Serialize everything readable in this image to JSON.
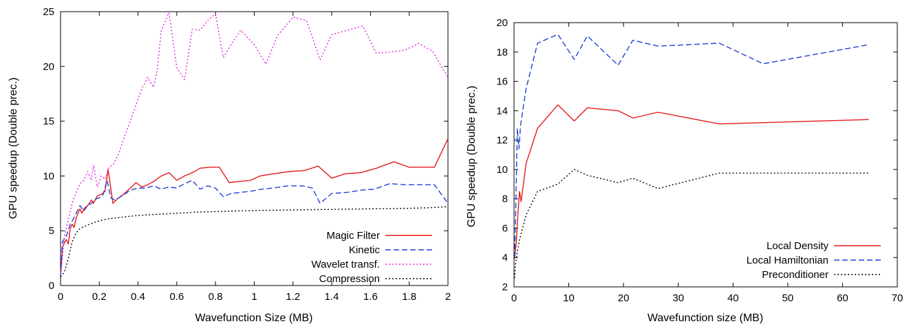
{
  "chart_data": [
    {
      "type": "line",
      "title": "",
      "xlabel": "Wavefunction Size (MB)",
      "ylabel": "GPU speedup (Double prec.)",
      "xlim": [
        0,
        2
      ],
      "ylim": [
        0,
        25
      ],
      "xticks": [
        0,
        0.2,
        0.4,
        0.6,
        0.8,
        1,
        1.2,
        1.4,
        1.6,
        1.8,
        2
      ],
      "xtick_labels": [
        "0",
        "0.2",
        "0.4",
        "0.6",
        "0.8",
        "1",
        "1.2",
        "1.4",
        "1.6",
        "1.8",
        "2"
      ],
      "yticks": [
        0,
        5,
        10,
        15,
        20,
        25
      ],
      "ytick_labels": [
        "0",
        "5",
        "10",
        "15",
        "20",
        "25"
      ],
      "grid": false,
      "legend_position": "bottom-right",
      "series": [
        {
          "name": "Magic Filter",
          "color": "#e41a1c",
          "dash": "solid",
          "points": [
            [
              0,
              0.8
            ],
            [
              0.01,
              3.5
            ],
            [
              0.02,
              3.9
            ],
            [
              0.03,
              4.2
            ],
            [
              0.04,
              3.8
            ],
            [
              0.05,
              5.2
            ],
            [
              0.06,
              5.6
            ],
            [
              0.07,
              5.3
            ],
            [
              0.08,
              6.1
            ],
            [
              0.09,
              6.6
            ],
            [
              0.1,
              7.0
            ],
            [
              0.11,
              6.6
            ],
            [
              0.12,
              7.0
            ],
            [
              0.14,
              7.3
            ],
            [
              0.16,
              7.8
            ],
            [
              0.17,
              7.5
            ],
            [
              0.19,
              8.2
            ],
            [
              0.21,
              8.3
            ],
            [
              0.23,
              8.6
            ],
            [
              0.245,
              10.6
            ],
            [
              0.26,
              8.8
            ],
            [
              0.27,
              7.5
            ],
            [
              0.3,
              8.0
            ],
            [
              0.33,
              8.4
            ],
            [
              0.36,
              8.9
            ],
            [
              0.39,
              9.4
            ],
            [
              0.42,
              9.0
            ],
            [
              0.45,
              9.2
            ],
            [
              0.48,
              9.5
            ],
            [
              0.52,
              10.0
            ],
            [
              0.56,
              10.3
            ],
            [
              0.6,
              9.6
            ],
            [
              0.64,
              10.0
            ],
            [
              0.68,
              10.3
            ],
            [
              0.72,
              10.7
            ],
            [
              0.77,
              10.8
            ],
            [
              0.82,
              10.8
            ],
            [
              0.87,
              9.4
            ],
            [
              0.92,
              9.5
            ],
            [
              0.98,
              9.6
            ],
            [
              1.03,
              10.0
            ],
            [
              1.1,
              10.2
            ],
            [
              1.18,
              10.4
            ],
            [
              1.26,
              10.5
            ],
            [
              1.33,
              10.9
            ],
            [
              1.4,
              9.8
            ],
            [
              1.47,
              10.2
            ],
            [
              1.55,
              10.3
            ],
            [
              1.63,
              10.7
            ],
            [
              1.72,
              11.3
            ],
            [
              1.8,
              10.8
            ],
            [
              1.87,
              10.8
            ],
            [
              1.93,
              10.8
            ],
            [
              2,
              13.4
            ]
          ]
        },
        {
          "name": "Kinetic",
          "color": "#1f3fd6",
          "dash": "dashed",
          "points": [
            [
              0,
              0.8
            ],
            [
              0.01,
              4.0
            ],
            [
              0.03,
              4.5
            ],
            [
              0.05,
              5.6
            ],
            [
              0.07,
              6.2
            ],
            [
              0.1,
              7.3
            ],
            [
              0.12,
              6.8
            ],
            [
              0.14,
              7.3
            ],
            [
              0.16,
              7.5
            ],
            [
              0.18,
              7.9
            ],
            [
              0.2,
              8.0
            ],
            [
              0.22,
              8.3
            ],
            [
              0.24,
              9.6
            ],
            [
              0.26,
              8.0
            ],
            [
              0.28,
              7.8
            ],
            [
              0.32,
              8.2
            ],
            [
              0.36,
              8.7
            ],
            [
              0.4,
              8.9
            ],
            [
              0.44,
              8.9
            ],
            [
              0.48,
              9.1
            ],
            [
              0.52,
              8.8
            ],
            [
              0.56,
              9.0
            ],
            [
              0.6,
              8.9
            ],
            [
              0.64,
              9.3
            ],
            [
              0.68,
              9.6
            ],
            [
              0.72,
              8.8
            ],
            [
              0.76,
              9.1
            ],
            [
              0.8,
              8.9
            ],
            [
              0.84,
              8.1
            ],
            [
              0.88,
              8.4
            ],
            [
              0.93,
              8.5
            ],
            [
              0.98,
              8.6
            ],
            [
              1.04,
              8.8
            ],
            [
              1.1,
              8.9
            ],
            [
              1.17,
              9.1
            ],
            [
              1.25,
              9.1
            ],
            [
              1.3,
              8.9
            ],
            [
              1.34,
              7.5
            ],
            [
              1.4,
              8.4
            ],
            [
              1.48,
              8.5
            ],
            [
              1.55,
              8.7
            ],
            [
              1.62,
              8.8
            ],
            [
              1.7,
              9.3
            ],
            [
              1.78,
              9.2
            ],
            [
              1.86,
              9.2
            ],
            [
              1.93,
              9.2
            ],
            [
              2,
              7.5
            ]
          ]
        },
        {
          "name": "Wavelet transf.",
          "color": "#e020e0",
          "dash": "dotted",
          "points": [
            [
              0,
              0.8
            ],
            [
              0.02,
              4.5
            ],
            [
              0.04,
              6.0
            ],
            [
              0.06,
              7.5
            ],
            [
              0.08,
              8.5
            ],
            [
              0.1,
              9.3
            ],
            [
              0.12,
              9.6
            ],
            [
              0.14,
              10.4
            ],
            [
              0.16,
              9.6
            ],
            [
              0.17,
              11.0
            ],
            [
              0.19,
              9.0
            ],
            [
              0.21,
              10.0
            ],
            [
              0.23,
              9.7
            ],
            [
              0.25,
              10.8
            ],
            [
              0.27,
              11.0
            ],
            [
              0.3,
              12.0
            ],
            [
              0.33,
              13.6
            ],
            [
              0.36,
              15.0
            ],
            [
              0.39,
              16.5
            ],
            [
              0.42,
              18.0
            ],
            [
              0.45,
              19.0
            ],
            [
              0.48,
              18.1
            ],
            [
              0.5,
              19.8
            ],
            [
              0.52,
              23.3
            ],
            [
              0.56,
              24.9
            ],
            [
              0.6,
              19.9
            ],
            [
              0.64,
              18.8
            ],
            [
              0.68,
              23.4
            ],
            [
              0.72,
              23.3
            ],
            [
              0.76,
              24.2
            ],
            [
              0.8,
              24.8
            ],
            [
              0.84,
              20.8
            ],
            [
              0.88,
              22.0
            ],
            [
              0.93,
              23.3
            ],
            [
              1.0,
              22.0
            ],
            [
              1.06,
              20.2
            ],
            [
              1.12,
              22.8
            ],
            [
              1.2,
              24.5
            ],
            [
              1.27,
              24.2
            ],
            [
              1.34,
              20.6
            ],
            [
              1.4,
              22.9
            ],
            [
              1.48,
              23.3
            ],
            [
              1.56,
              23.7
            ],
            [
              1.63,
              21.2
            ],
            [
              1.7,
              21.3
            ],
            [
              1.78,
              21.5
            ],
            [
              1.85,
              22.1
            ],
            [
              1.92,
              21.4
            ],
            [
              2,
              19.0
            ]
          ]
        },
        {
          "name": "Compression",
          "color": "#000000",
          "dash": "dotted",
          "points": [
            [
              0,
              0.8
            ],
            [
              0.02,
              1.2
            ],
            [
              0.04,
              2.5
            ],
            [
              0.06,
              4.0
            ],
            [
              0.08,
              4.8
            ],
            [
              0.1,
              5.2
            ],
            [
              0.15,
              5.6
            ],
            [
              0.2,
              5.9
            ],
            [
              0.25,
              6.1
            ],
            [
              0.3,
              6.2
            ],
            [
              0.4,
              6.4
            ],
            [
              0.5,
              6.5
            ],
            [
              0.6,
              6.6
            ],
            [
              0.7,
              6.7
            ],
            [
              0.8,
              6.75
            ],
            [
              0.9,
              6.8
            ],
            [
              1.0,
              6.85
            ],
            [
              1.2,
              6.9
            ],
            [
              1.4,
              6.95
            ],
            [
              1.6,
              7.0
            ],
            [
              1.8,
              7.05
            ],
            [
              1.9,
              7.1
            ],
            [
              2,
              7.2
            ]
          ]
        }
      ]
    },
    {
      "type": "line",
      "title": "",
      "xlabel": "Wavefunction size (MB)",
      "ylabel": "GPU speedup (Double prec.)",
      "xlim": [
        0,
        70
      ],
      "ylim": [
        2,
        20
      ],
      "xticks": [
        0,
        10,
        20,
        30,
        40,
        50,
        60,
        70
      ],
      "xtick_labels": [
        "0",
        "10",
        "20",
        "30",
        "40",
        "50",
        "60",
        "70"
      ],
      "yticks": [
        2,
        4,
        6,
        8,
        10,
        12,
        14,
        16,
        18,
        20
      ],
      "ytick_labels": [
        "2",
        "4",
        "6",
        "8",
        "10",
        "12",
        "14",
        "16",
        "18",
        "20"
      ],
      "grid": false,
      "legend_position": "bottom-right",
      "series": [
        {
          "name": "Local Density",
          "color": "#e41a1c",
          "dash": "solid",
          "points": [
            [
              0.1,
              3.9
            ],
            [
              0.4,
              5.0
            ],
            [
              0.7,
              6.9
            ],
            [
              1.0,
              8.5
            ],
            [
              1.3,
              7.8
            ],
            [
              2.2,
              10.4
            ],
            [
              4.3,
              12.8
            ],
            [
              8.0,
              14.4
            ],
            [
              11.0,
              13.3
            ],
            [
              13.4,
              14.2
            ],
            [
              19.0,
              14.0
            ],
            [
              21.7,
              13.5
            ],
            [
              26.3,
              13.9
            ],
            [
              37.5,
              13.1
            ],
            [
              64.8,
              13.4
            ]
          ]
        },
        {
          "name": "Local Hamiltonian",
          "color": "#1f3fd6",
          "dash": "dashed",
          "points": [
            [
              0.1,
              4.0
            ],
            [
              0.3,
              7.0
            ],
            [
              0.6,
              12.8
            ],
            [
              0.9,
              11.4
            ],
            [
              1.2,
              13.0
            ],
            [
              2.2,
              15.5
            ],
            [
              4.3,
              18.6
            ],
            [
              8.0,
              19.2
            ],
            [
              11.0,
              17.5
            ],
            [
              13.4,
              19.1
            ],
            [
              19.0,
              17.1
            ],
            [
              21.7,
              18.8
            ],
            [
              26.3,
              18.4
            ],
            [
              37.5,
              18.6
            ],
            [
              45.5,
              17.2
            ],
            [
              64.8,
              18.5
            ]
          ]
        },
        {
          "name": "Preconditioner",
          "color": "#000000",
          "dash": "dotted",
          "points": [
            [
              0.1,
              2.6
            ],
            [
              0.3,
              3.6
            ],
            [
              0.6,
              4.4
            ],
            [
              1.0,
              5.2
            ],
            [
              2.2,
              6.9
            ],
            [
              4.3,
              8.5
            ],
            [
              8.0,
              9.0
            ],
            [
              11.0,
              10.0
            ],
            [
              13.4,
              9.6
            ],
            [
              19.0,
              9.1
            ],
            [
              21.7,
              9.4
            ],
            [
              26.3,
              8.7
            ],
            [
              37.5,
              9.75
            ],
            [
              64.8,
              9.75
            ]
          ]
        }
      ]
    }
  ]
}
